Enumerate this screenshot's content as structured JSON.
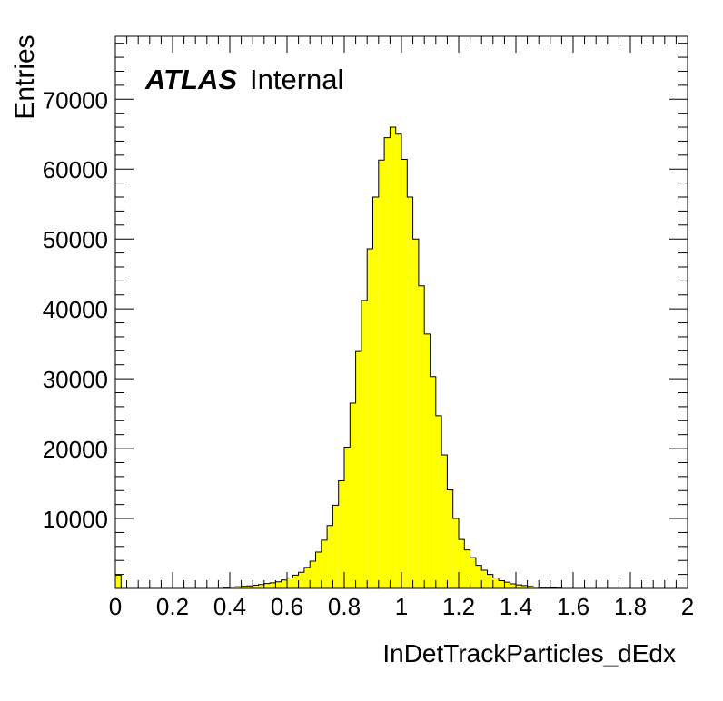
{
  "chart_data": {
    "type": "bar",
    "style": "filled-step-histogram",
    "xlabel": "InDetTrackParticles_dEdx",
    "ylabel": "Entries",
    "annotation": {
      "bold": "ATLAS",
      "normal": "Internal"
    },
    "fill_color": "#ffff00",
    "line_color": "#000000",
    "xlim": [
      0,
      2
    ],
    "ylim": [
      0,
      79000
    ],
    "x_ticks": [
      "0",
      "0.2",
      "0.4",
      "0.6",
      "0.8",
      "1",
      "1.2",
      "1.4",
      "1.6",
      "1.8",
      "2"
    ],
    "y_ticks": [
      "10000",
      "20000",
      "30000",
      "40000",
      "50000",
      "60000",
      "70000"
    ],
    "bin_width": 0.02,
    "bin_low_edges": [
      0.0,
      0.02,
      0.04,
      0.06,
      0.08,
      0.1,
      0.12,
      0.14,
      0.16,
      0.18,
      0.2,
      0.22,
      0.24,
      0.26,
      0.28,
      0.3,
      0.32,
      0.34,
      0.36,
      0.38,
      0.4,
      0.42,
      0.44,
      0.46,
      0.48,
      0.5,
      0.52,
      0.54,
      0.56,
      0.58,
      0.6,
      0.62,
      0.64,
      0.66,
      0.68,
      0.7,
      0.72,
      0.74,
      0.76,
      0.78,
      0.8,
      0.82,
      0.84,
      0.86,
      0.88,
      0.9,
      0.92,
      0.94,
      0.96,
      0.98,
      1.0,
      1.02,
      1.04,
      1.06,
      1.08,
      1.1,
      1.12,
      1.14,
      1.16,
      1.18,
      1.2,
      1.22,
      1.24,
      1.26,
      1.28,
      1.3,
      1.32,
      1.34,
      1.36,
      1.38,
      1.4,
      1.42,
      1.44,
      1.46,
      1.48,
      1.5,
      1.52,
      1.54,
      1.56,
      1.58,
      1.6,
      1.62,
      1.64,
      1.66,
      1.68,
      1.7,
      1.72,
      1.74,
      1.76,
      1.78,
      1.8,
      1.82,
      1.84,
      1.86,
      1.88,
      1.9,
      1.92,
      1.94,
      1.96,
      1.98
    ],
    "values": [
      1900,
      0,
      0,
      0,
      0,
      0,
      0,
      0,
      0,
      0,
      0,
      0,
      0,
      0,
      0,
      0,
      0,
      0,
      0,
      150,
      200,
      250,
      300,
      350,
      450,
      550,
      700,
      800,
      950,
      1200,
      1500,
      1900,
      2300,
      3000,
      3900,
      5200,
      6900,
      9000,
      11900,
      15400,
      20200,
      26500,
      33900,
      41200,
      48600,
      56000,
      61300,
      64500,
      66000,
      65000,
      61400,
      56000,
      50000,
      43300,
      36400,
      30300,
      24700,
      19100,
      14100,
      10000,
      7000,
      5500,
      4400,
      3300,
      2600,
      2000,
      1500,
      1100,
      900,
      650,
      500,
      400,
      300,
      200,
      150,
      150,
      100,
      50,
      0,
      0,
      0,
      0,
      0,
      0,
      0,
      0,
      0,
      0,
      0,
      0,
      0,
      0,
      0,
      0,
      0,
      0,
      0,
      0,
      0,
      0
    ]
  }
}
